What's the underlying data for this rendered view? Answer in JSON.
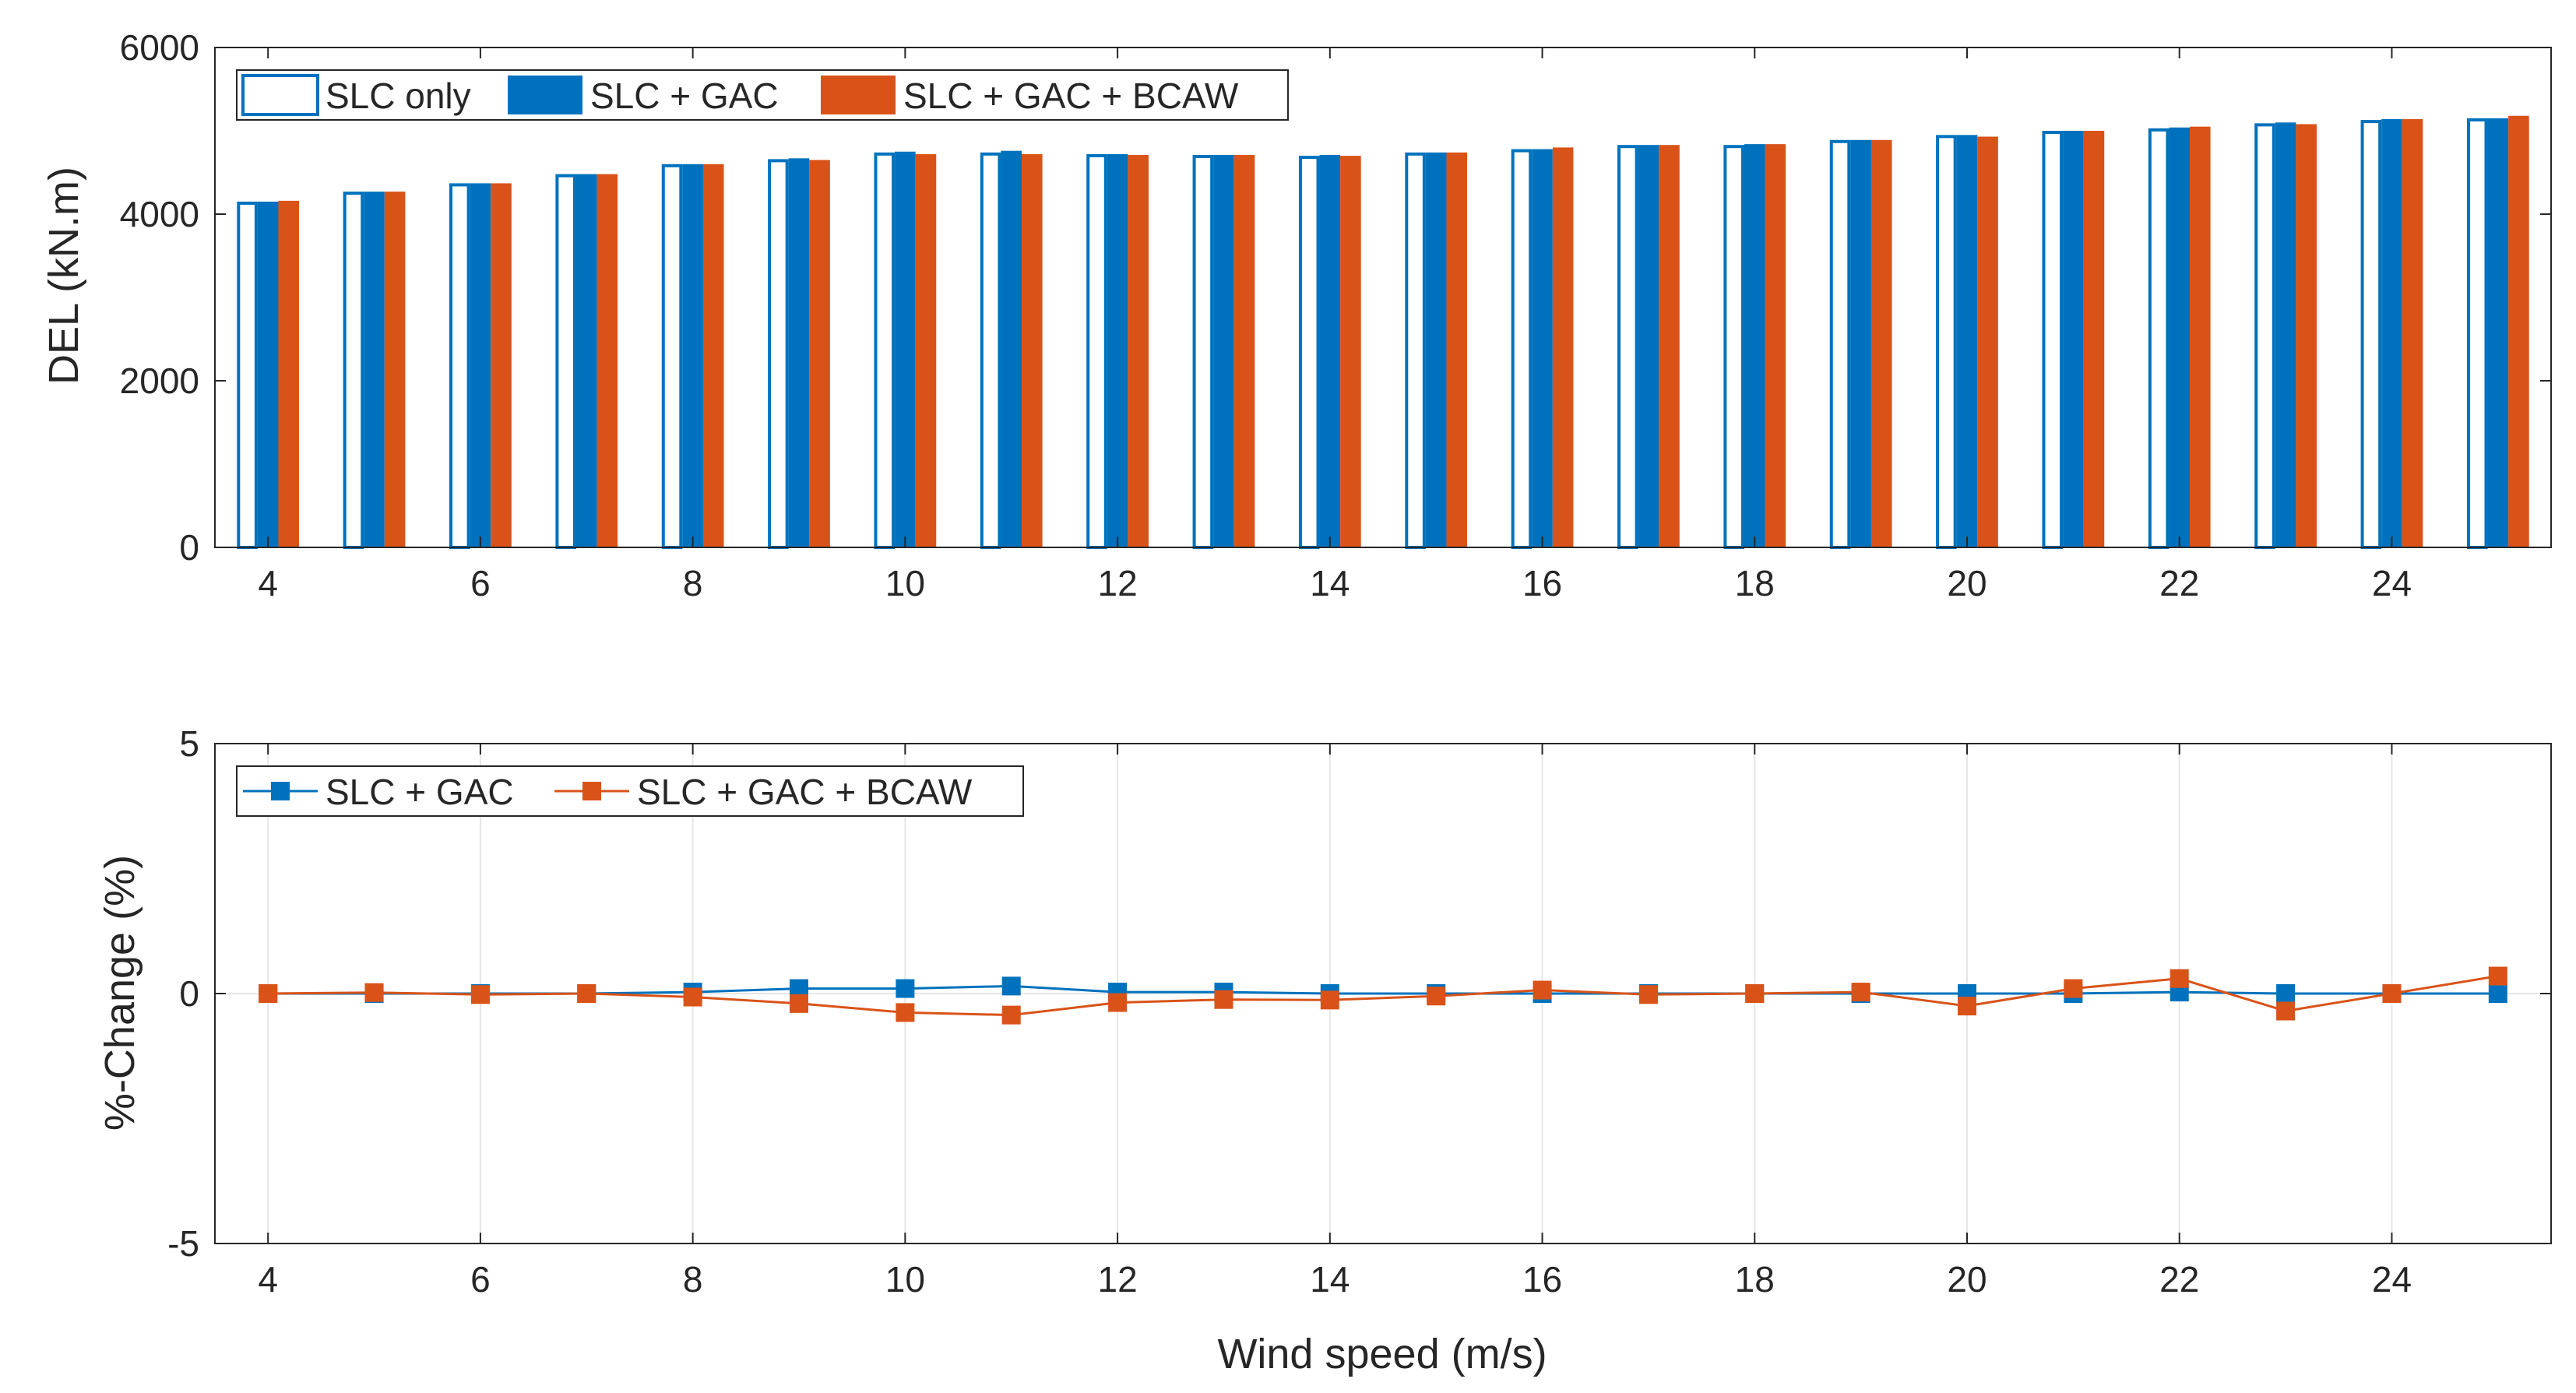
{
  "colors": {
    "slc_only_fill": "#ffffff",
    "slc_only_edge": "#0072BD",
    "slc_gac": "#0072BD",
    "slc_gac_bcaw": "#D95319",
    "axis": "#262626",
    "grid": "#e6e6e6"
  },
  "chart_data": [
    {
      "type": "bar",
      "title": "",
      "xlabel": "",
      "ylabel": "DEL (kN.m)",
      "categories": [
        4,
        5,
        6,
        7,
        8,
        9,
        10,
        11,
        12,
        13,
        14,
        15,
        16,
        17,
        18,
        19,
        20,
        21,
        22,
        23,
        24,
        25
      ],
      "xlim": [
        3.5,
        25.5
      ],
      "xticks": [
        4,
        6,
        8,
        10,
        12,
        14,
        16,
        18,
        20,
        22,
        24
      ],
      "ylim": [
        0,
        6000
      ],
      "yticks": [
        0,
        2000,
        4000,
        6000
      ],
      "grid": false,
      "legend_position": "top-left",
      "series": [
        {
          "name": "SLC only",
          "values": [
            4150,
            4270,
            4370,
            4480,
            4600,
            4660,
            4740,
            4740,
            4720,
            4710,
            4700,
            4740,
            4780,
            4830,
            4830,
            4890,
            4950,
            5000,
            5030,
            5090,
            5130,
            5150
          ]
        },
        {
          "name": "SLC + GAC",
          "values": [
            4150,
            4270,
            4370,
            4480,
            4600,
            4670,
            4750,
            4760,
            4720,
            4710,
            4710,
            4740,
            4780,
            4830,
            4840,
            4890,
            4950,
            5000,
            5040,
            5100,
            5140,
            5150
          ]
        },
        {
          "name": "SLC + GAC + BCAW",
          "values": [
            4160,
            4270,
            4370,
            4480,
            4600,
            4650,
            4720,
            4720,
            4710,
            4710,
            4700,
            4740,
            4800,
            4830,
            4840,
            4890,
            4930,
            5000,
            5050,
            5080,
            5140,
            5180
          ]
        }
      ]
    },
    {
      "type": "line",
      "title": "",
      "xlabel": "Wind speed (m/s)",
      "ylabel": "%-Change (%)",
      "x": [
        4,
        5,
        6,
        7,
        8,
        9,
        10,
        11,
        12,
        13,
        14,
        15,
        16,
        17,
        18,
        19,
        20,
        21,
        22,
        23,
        24,
        25
      ],
      "xlim": [
        3.5,
        25.5
      ],
      "xticks": [
        4,
        6,
        8,
        10,
        12,
        14,
        16,
        18,
        20,
        22,
        24
      ],
      "ylim": [
        -5,
        5
      ],
      "yticks": [
        -5,
        0,
        5
      ],
      "grid": true,
      "legend_position": "top-left",
      "marker": "square",
      "series": [
        {
          "name": "SLC + GAC",
          "values": [
            0.0,
            0.0,
            0.0,
            0.0,
            0.03,
            0.1,
            0.1,
            0.15,
            0.03,
            0.03,
            0.0,
            0.0,
            0.0,
            0.0,
            0.0,
            0.0,
            0.0,
            0.0,
            0.03,
            0.0,
            0.0,
            0.0
          ]
        },
        {
          "name": "SLC + GAC + BCAW",
          "values": [
            0.0,
            0.02,
            -0.02,
            0.0,
            -0.07,
            -0.2,
            -0.38,
            -0.43,
            -0.18,
            -0.12,
            -0.13,
            -0.05,
            0.07,
            -0.02,
            0.0,
            0.03,
            -0.25,
            0.1,
            0.3,
            -0.35,
            0.0,
            0.35
          ]
        }
      ]
    }
  ]
}
